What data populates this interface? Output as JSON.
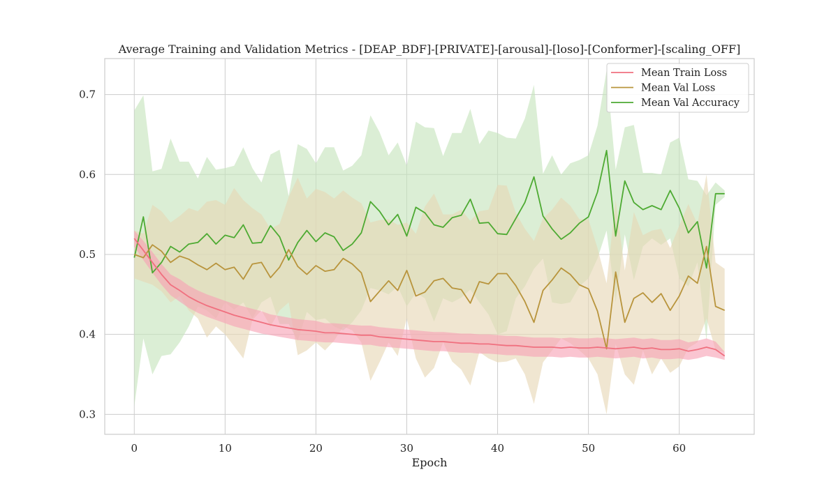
{
  "chart_data": {
    "type": "line",
    "title": "Average Training and Validation Metrics - [DEAP_BDF]-[PRIVATE]-[arousal]-[loso]-[Conformer]-[scaling_OFF]",
    "xlabel": "Epoch",
    "ylabel": "",
    "xlim": [
      -3.25,
      68.25
    ],
    "ylim": [
      0.275,
      0.745
    ],
    "xticks": [
      0,
      10,
      20,
      30,
      40,
      50,
      60
    ],
    "yticks": [
      0.3,
      0.4,
      0.5,
      0.6,
      0.7
    ],
    "grid": true,
    "legend_position": "top-right",
    "x": [
      0,
      1,
      2,
      3,
      4,
      5,
      6,
      7,
      8,
      9,
      10,
      11,
      12,
      13,
      14,
      15,
      16,
      17,
      18,
      19,
      20,
      21,
      22,
      23,
      24,
      25,
      26,
      27,
      28,
      29,
      30,
      31,
      32,
      33,
      34,
      35,
      36,
      37,
      38,
      39,
      40,
      41,
      42,
      43,
      44,
      45,
      46,
      47,
      48,
      49,
      50,
      51,
      52,
      53,
      54,
      55,
      56,
      57,
      58,
      59,
      60,
      61,
      62,
      63,
      64,
      65
    ],
    "series": [
      {
        "name": "Mean Train Loss",
        "color": "#f0707f",
        "band_color": "#f7a1b4",
        "values": [
          0.52,
          0.505,
          0.49,
          0.475,
          0.462,
          0.455,
          0.447,
          0.441,
          0.436,
          0.432,
          0.428,
          0.424,
          0.421,
          0.418,
          0.415,
          0.412,
          0.41,
          0.408,
          0.406,
          0.405,
          0.404,
          0.402,
          0.402,
          0.401,
          0.4,
          0.399,
          0.399,
          0.397,
          0.396,
          0.395,
          0.394,
          0.393,
          0.392,
          0.391,
          0.391,
          0.39,
          0.389,
          0.389,
          0.388,
          0.388,
          0.387,
          0.386,
          0.386,
          0.385,
          0.384,
          0.384,
          0.384,
          0.383,
          0.384,
          0.383,
          0.383,
          0.384,
          0.383,
          0.382,
          0.383,
          0.384,
          0.382,
          0.383,
          0.381,
          0.381,
          0.382,
          0.379,
          0.381,
          0.384,
          0.381,
          0.373
        ],
        "lower": [
          0.51,
          0.493,
          0.477,
          0.462,
          0.449,
          0.441,
          0.433,
          0.427,
          0.422,
          0.418,
          0.414,
          0.41,
          0.407,
          0.404,
          0.401,
          0.399,
          0.397,
          0.395,
          0.393,
          0.392,
          0.391,
          0.39,
          0.39,
          0.389,
          0.388,
          0.387,
          0.387,
          0.385,
          0.384,
          0.383,
          0.382,
          0.381,
          0.38,
          0.379,
          0.379,
          0.378,
          0.377,
          0.377,
          0.376,
          0.376,
          0.375,
          0.374,
          0.374,
          0.373,
          0.372,
          0.372,
          0.372,
          0.371,
          0.372,
          0.371,
          0.371,
          0.372,
          0.371,
          0.37,
          0.371,
          0.372,
          0.37,
          0.371,
          0.369,
          0.369,
          0.37,
          0.368,
          0.37,
          0.373,
          0.371,
          0.368
        ],
        "upper": [
          0.53,
          0.517,
          0.503,
          0.488,
          0.475,
          0.469,
          0.461,
          0.455,
          0.45,
          0.446,
          0.442,
          0.438,
          0.435,
          0.432,
          0.429,
          0.425,
          0.423,
          0.421,
          0.419,
          0.418,
          0.417,
          0.414,
          0.414,
          0.413,
          0.412,
          0.411,
          0.411,
          0.409,
          0.408,
          0.407,
          0.406,
          0.405,
          0.404,
          0.403,
          0.403,
          0.402,
          0.401,
          0.401,
          0.4,
          0.4,
          0.399,
          0.398,
          0.398,
          0.397,
          0.396,
          0.396,
          0.396,
          0.395,
          0.396,
          0.395,
          0.395,
          0.396,
          0.395,
          0.394,
          0.395,
          0.396,
          0.394,
          0.395,
          0.393,
          0.393,
          0.394,
          0.39,
          0.392,
          0.395,
          0.391,
          0.378
        ]
      },
      {
        "name": "Mean Val Loss",
        "color": "#b8943c",
        "band_color": "#e7d7b4",
        "values": [
          0.5,
          0.496,
          0.512,
          0.504,
          0.49,
          0.498,
          0.494,
          0.487,
          0.481,
          0.489,
          0.481,
          0.484,
          0.469,
          0.488,
          0.49,
          0.471,
          0.484,
          0.506,
          0.485,
          0.475,
          0.486,
          0.479,
          0.481,
          0.495,
          0.488,
          0.477,
          0.441,
          0.454,
          0.467,
          0.455,
          0.48,
          0.448,
          0.453,
          0.467,
          0.47,
          0.458,
          0.456,
          0.439,
          0.466,
          0.463,
          0.476,
          0.476,
          0.461,
          0.441,
          0.415,
          0.455,
          0.468,
          0.483,
          0.475,
          0.462,
          0.457,
          0.429,
          0.382,
          0.478,
          0.415,
          0.445,
          0.452,
          0.44,
          0.451,
          0.43,
          0.448,
          0.473,
          0.464,
          0.51,
          0.435,
          0.43
        ],
        "lower": [
          0.47,
          0.466,
          0.462,
          0.454,
          0.44,
          0.448,
          0.43,
          0.42,
          0.396,
          0.41,
          0.4,
          0.385,
          0.37,
          0.418,
          0.43,
          0.41,
          0.43,
          0.44,
          0.374,
          0.38,
          0.39,
          0.38,
          0.392,
          0.41,
          0.405,
          0.39,
          0.342,
          0.365,
          0.39,
          0.373,
          0.42,
          0.37,
          0.346,
          0.358,
          0.39,
          0.366,
          0.356,
          0.336,
          0.378,
          0.37,
          0.365,
          0.366,
          0.37,
          0.35,
          0.313,
          0.365,
          0.38,
          0.395,
          0.389,
          0.38,
          0.37,
          0.35,
          0.3,
          0.388,
          0.35,
          0.337,
          0.38,
          0.35,
          0.37,
          0.352,
          0.36,
          0.383,
          0.39,
          0.42,
          0.38,
          0.378
        ],
        "upper": [
          0.53,
          0.526,
          0.562,
          0.554,
          0.54,
          0.548,
          0.558,
          0.554,
          0.566,
          0.568,
          0.562,
          0.583,
          0.568,
          0.558,
          0.55,
          0.532,
          0.538,
          0.572,
          0.596,
          0.57,
          0.582,
          0.578,
          0.57,
          0.58,
          0.571,
          0.564,
          0.54,
          0.543,
          0.544,
          0.537,
          0.54,
          0.526,
          0.56,
          0.576,
          0.55,
          0.55,
          0.556,
          0.542,
          0.554,
          0.556,
          0.587,
          0.586,
          0.552,
          0.532,
          0.517,
          0.545,
          0.556,
          0.571,
          0.561,
          0.544,
          0.544,
          0.508,
          0.464,
          0.568,
          0.48,
          0.553,
          0.524,
          0.53,
          0.532,
          0.508,
          0.536,
          0.563,
          0.538,
          0.6,
          0.49,
          0.482
        ]
      },
      {
        "name": "Mean Val Accuracy",
        "color": "#4daa32",
        "band_color": "#c5e4bb",
        "values": [
          0.496,
          0.547,
          0.477,
          0.49,
          0.51,
          0.503,
          0.513,
          0.515,
          0.526,
          0.513,
          0.524,
          0.521,
          0.537,
          0.514,
          0.515,
          0.536,
          0.522,
          0.493,
          0.515,
          0.53,
          0.516,
          0.527,
          0.522,
          0.505,
          0.513,
          0.527,
          0.566,
          0.554,
          0.537,
          0.55,
          0.523,
          0.559,
          0.552,
          0.537,
          0.534,
          0.546,
          0.549,
          0.569,
          0.539,
          0.54,
          0.526,
          0.525,
          0.545,
          0.565,
          0.597,
          0.548,
          0.532,
          0.519,
          0.527,
          0.539,
          0.547,
          0.578,
          0.63,
          0.523,
          0.592,
          0.565,
          0.556,
          0.561,
          0.556,
          0.58,
          0.558,
          0.527,
          0.541,
          0.483,
          0.576,
          0.576
        ],
        "lower": [
          0.31,
          0.395,
          0.35,
          0.373,
          0.375,
          0.39,
          0.41,
          0.435,
          0.43,
          0.42,
          0.44,
          0.431,
          0.44,
          0.42,
          0.44,
          0.447,
          0.413,
          0.413,
          0.392,
          0.428,
          0.418,
          0.42,
          0.41,
          0.405,
          0.415,
          0.43,
          0.458,
          0.455,
          0.45,
          0.46,
          0.435,
          0.452,
          0.445,
          0.416,
          0.445,
          0.44,
          0.446,
          0.456,
          0.44,
          0.425,
          0.4,
          0.404,
          0.445,
          0.46,
          0.482,
          0.495,
          0.44,
          0.438,
          0.44,
          0.46,
          0.47,
          0.495,
          0.53,
          0.44,
          0.525,
          0.468,
          0.51,
          0.52,
          0.512,
          0.52,
          0.47,
          0.46,
          0.49,
          0.392,
          0.562,
          0.572
        ],
        "upper": [
          0.68,
          0.699,
          0.604,
          0.607,
          0.645,
          0.616,
          0.616,
          0.595,
          0.622,
          0.606,
          0.608,
          0.611,
          0.634,
          0.608,
          0.59,
          0.625,
          0.631,
          0.573,
          0.638,
          0.632,
          0.614,
          0.634,
          0.634,
          0.605,
          0.611,
          0.624,
          0.674,
          0.653,
          0.624,
          0.64,
          0.611,
          0.666,
          0.659,
          0.658,
          0.623,
          0.652,
          0.652,
          0.682,
          0.638,
          0.655,
          0.652,
          0.646,
          0.645,
          0.67,
          0.712,
          0.601,
          0.624,
          0.6,
          0.614,
          0.618,
          0.624,
          0.661,
          0.73,
          0.606,
          0.659,
          0.662,
          0.602,
          0.602,
          0.6,
          0.64,
          0.646,
          0.594,
          0.592,
          0.574,
          0.59,
          0.58
        ]
      }
    ]
  }
}
